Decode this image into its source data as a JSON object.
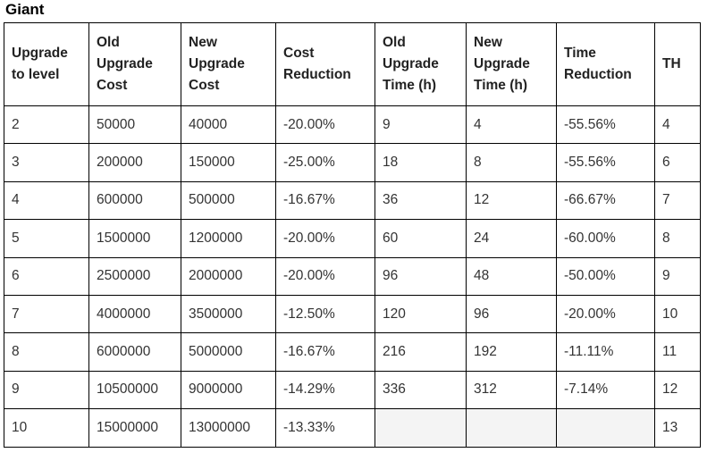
{
  "title": "Giant",
  "columns": [
    [
      "Upgrade",
      "to level"
    ],
    [
      "Old",
      "Upgrade",
      "Cost"
    ],
    [
      "New",
      "Upgrade",
      "Cost"
    ],
    [
      "Cost",
      "Reduction"
    ],
    [
      "Old",
      "Upgrade",
      "Time (h)"
    ],
    [
      "New",
      "Upgrade",
      "Time (h)"
    ],
    [
      "Time",
      "Reduction"
    ],
    [
      "TH"
    ]
  ],
  "rows": [
    [
      "2",
      "50000",
      "40000",
      "-20.00%",
      "9",
      "4",
      "-55.56%",
      "4"
    ],
    [
      "3",
      "200000",
      "150000",
      "-25.00%",
      "18",
      "8",
      "-55.56%",
      "6"
    ],
    [
      "4",
      "600000",
      "500000",
      "-16.67%",
      "36",
      "12",
      "-66.67%",
      "7"
    ],
    [
      "5",
      "1500000",
      "1200000",
      "-20.00%",
      "60",
      "24",
      "-60.00%",
      "8"
    ],
    [
      "6",
      "2500000",
      "2000000",
      "-20.00%",
      "96",
      "48",
      "-50.00%",
      "9"
    ],
    [
      "7",
      "4000000",
      "3500000",
      "-12.50%",
      "120",
      "96",
      "-20.00%",
      "10"
    ],
    [
      "8",
      "6000000",
      "5000000",
      "-16.67%",
      "216",
      "192",
      "-11.11%",
      "11"
    ],
    [
      "9",
      "10500000",
      "9000000",
      "-14.29%",
      "336",
      "312",
      "-7.14%",
      "12"
    ],
    [
      "10",
      "15000000",
      "13000000",
      "-13.33%",
      "",
      "",
      "",
      "13"
    ]
  ]
}
